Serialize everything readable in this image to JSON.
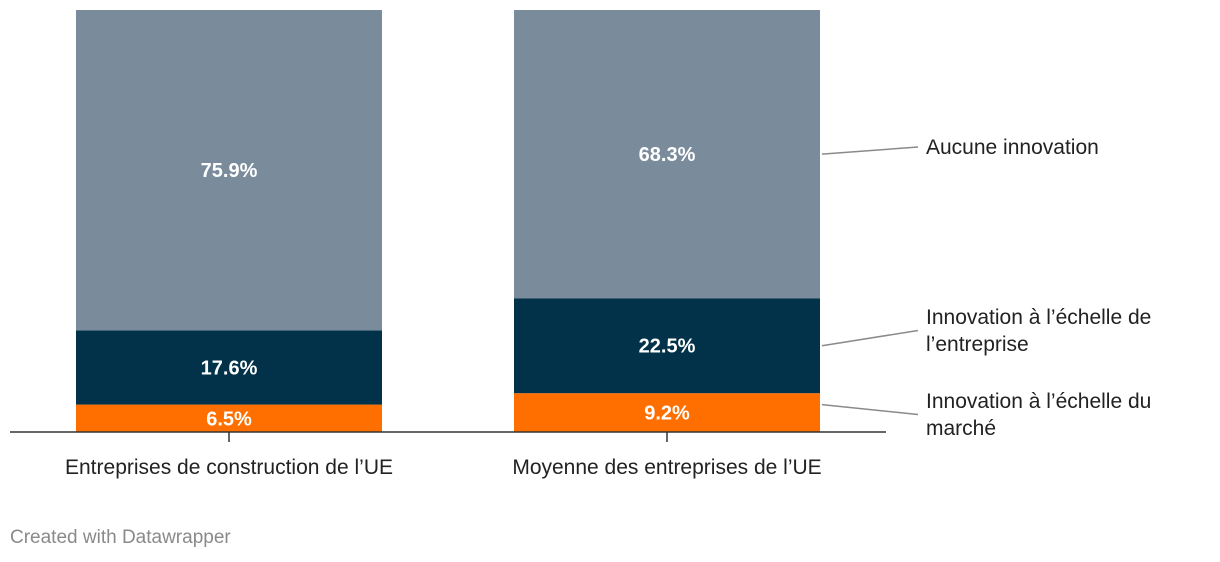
{
  "chart_data": {
    "type": "bar",
    "stacked": true,
    "normalized": true,
    "categories": [
      "Entreprises de construction de l’UE",
      "Moyenne des entreprises de l’UE"
    ],
    "series": [
      {
        "name": "Innovation à l’échelle du marché",
        "values": [
          6.5,
          9.2
        ],
        "color": "#ff6f00",
        "legend_lines": [
          "Innovation à l’échelle du",
          "marché"
        ]
      },
      {
        "name": "Innovation à l’échelle de l’entreprise",
        "values": [
          17.6,
          22.5
        ],
        "color": "#02324a",
        "legend_lines": [
          "Innovation à l’échelle de",
          "l’entreprise"
        ]
      },
      {
        "name": "Aucune innovation",
        "values": [
          75.9,
          68.3
        ],
        "color": "#7a8c9b",
        "legend_lines": [
          "Aucune innovation"
        ]
      }
    ],
    "value_suffix": "%",
    "ylim": [
      0,
      100
    ],
    "legend_position": "right, inline labels with leader lines",
    "grid": false
  },
  "footer": {
    "credit": "Created with Datawrapper"
  }
}
